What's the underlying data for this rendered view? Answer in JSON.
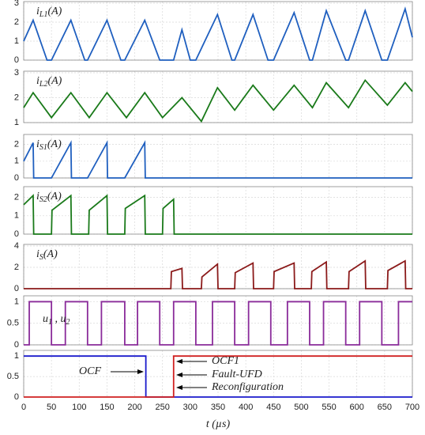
{
  "chart_data": [
    {
      "type": "line",
      "label": [
        "i",
        "L1",
        "(A)"
      ],
      "color": "#1f5fbf",
      "ylim": [
        0,
        3
      ],
      "yticks": [
        0,
        1,
        2,
        3
      ],
      "x": [
        0,
        17,
        42,
        50,
        85,
        110,
        115,
        150,
        175,
        182,
        218,
        245,
        270,
        285,
        300,
        310,
        349,
        375,
        380,
        413,
        440,
        450,
        487,
        515,
        520,
        545,
        580,
        585,
        615,
        645,
        655,
        687,
        700
      ],
      "values": [
        1,
        2.1,
        0,
        0,
        2.1,
        0,
        0,
        2.1,
        0,
        0,
        2.1,
        0,
        0,
        1.6,
        0,
        0,
        2.4,
        0,
        0,
        2.4,
        0,
        0,
        2.5,
        0,
        0,
        2.6,
        0,
        0,
        2.6,
        0,
        0,
        2.7,
        1.2
      ]
    },
    {
      "type": "line",
      "label": [
        "i",
        "L2",
        "(A)"
      ],
      "color": "#1a7a1a",
      "ylim": [
        1,
        3
      ],
      "yticks": [
        1,
        2,
        3
      ],
      "x": [
        0,
        17,
        50,
        85,
        118,
        150,
        185,
        218,
        250,
        285,
        320,
        349,
        380,
        413,
        450,
        487,
        520,
        545,
        585,
        615,
        655,
        687,
        700
      ],
      "values": [
        1.6,
        2.2,
        1.2,
        2.2,
        1.2,
        2.2,
        1.2,
        2.2,
        1.2,
        2.0,
        1.05,
        2.4,
        1.5,
        2.5,
        1.5,
        2.5,
        1.6,
        2.6,
        1.6,
        2.7,
        1.7,
        2.6,
        2.25
      ]
    },
    {
      "type": "line",
      "label": [
        "i",
        "S1",
        "(A)"
      ],
      "color": "#1f5fbf",
      "ylim": [
        0,
        2.5
      ],
      "yticks": [
        0,
        1,
        2
      ],
      "x": [
        0,
        17,
        18,
        50,
        85,
        86,
        115,
        150,
        151,
        182,
        218,
        219,
        700
      ],
      "values": [
        1,
        2.1,
        0,
        0,
        2.1,
        0,
        0,
        2.1,
        0,
        0,
        2.1,
        0,
        0
      ]
    },
    {
      "type": "line",
      "label": [
        "i",
        "S2",
        "(A)"
      ],
      "color": "#1a7a1a",
      "ylim": [
        0,
        2.5
      ],
      "yticks": [
        0,
        1,
        2
      ],
      "x": [
        0,
        17,
        18,
        50,
        51,
        85,
        86,
        117,
        118,
        150,
        151,
        182,
        183,
        218,
        219,
        250,
        251,
        270,
        271,
        700
      ],
      "values": [
        1.6,
        2.1,
        0,
        0,
        1.3,
        2.1,
        0,
        0,
        1.3,
        2.1,
        0,
        0,
        1.4,
        2.1,
        0,
        0,
        1.4,
        1.9,
        0,
        0
      ]
    },
    {
      "type": "line",
      "label": [
        "i",
        "S",
        "(A)"
      ],
      "color": "#8b1a1a",
      "ylim": [
        0,
        4
      ],
      "yticks": [
        0,
        2,
        4
      ],
      "x": [
        0,
        265,
        266,
        285,
        286,
        320,
        321,
        349,
        350,
        380,
        381,
        413,
        414,
        450,
        451,
        487,
        488,
        518,
        519,
        545,
        546,
        585,
        586,
        615,
        616,
        655,
        656,
        687,
        688,
        700
      ],
      "values": [
        0,
        0,
        1.6,
        1.9,
        0,
        0,
        1.1,
        2.3,
        0,
        0,
        1.5,
        2.4,
        0,
        0,
        1.6,
        2.4,
        0,
        0,
        1.6,
        2.5,
        0,
        0,
        1.6,
        2.6,
        0,
        0,
        1.7,
        2.6,
        0,
        0
      ]
    },
    {
      "type": "line",
      "label": [
        "u",
        "1",
        " , u",
        "2"
      ],
      "color": "#8a2b9a",
      "ylim": [
        0,
        1.1
      ],
      "yticks": [
        0,
        0.5,
        1
      ],
      "x": [
        0,
        10,
        10,
        50,
        50,
        75,
        75,
        115,
        115,
        140,
        140,
        182,
        182,
        205,
        205,
        245,
        245,
        270,
        270,
        310,
        310,
        340,
        340,
        380,
        380,
        405,
        405,
        445,
        445,
        475,
        475,
        515,
        515,
        540,
        540,
        580,
        580,
        605,
        605,
        645,
        645,
        675,
        675,
        700
      ],
      "values": [
        0,
        0,
        1,
        1,
        0,
        0,
        1,
        1,
        0,
        0,
        1,
        1,
        0,
        0,
        1,
        1,
        0,
        0,
        1,
        1,
        0,
        0,
        1,
        1,
        0,
        0,
        1,
        1,
        0,
        0,
        1,
        1,
        0,
        0,
        1,
        1,
        0,
        0,
        1,
        1,
        0,
        0,
        1,
        1
      ]
    },
    {
      "type": "line",
      "ylim": [
        0,
        1.1
      ],
      "yticks": [
        0,
        0.5,
        1
      ],
      "x": [
        0,
        220,
        220,
        270,
        270,
        700
      ],
      "series": [
        {
          "color": "#1a1acc",
          "values": [
            1,
            1,
            0,
            0,
            0,
            0
          ]
        },
        {
          "color": "#d02020",
          "values": [
            0,
            0,
            0,
            0,
            1,
            1
          ]
        }
      ],
      "annotations": [
        "OCF",
        "OCF1",
        "Fault-UFD",
        "Reconfiguration"
      ],
      "xlim": [
        0,
        700
      ],
      "xticks": [
        0,
        50,
        100,
        150,
        200,
        250,
        300,
        350,
        400,
        450,
        500,
        550,
        600,
        650,
        700
      ],
      "xlabel": "t (µs)"
    }
  ]
}
